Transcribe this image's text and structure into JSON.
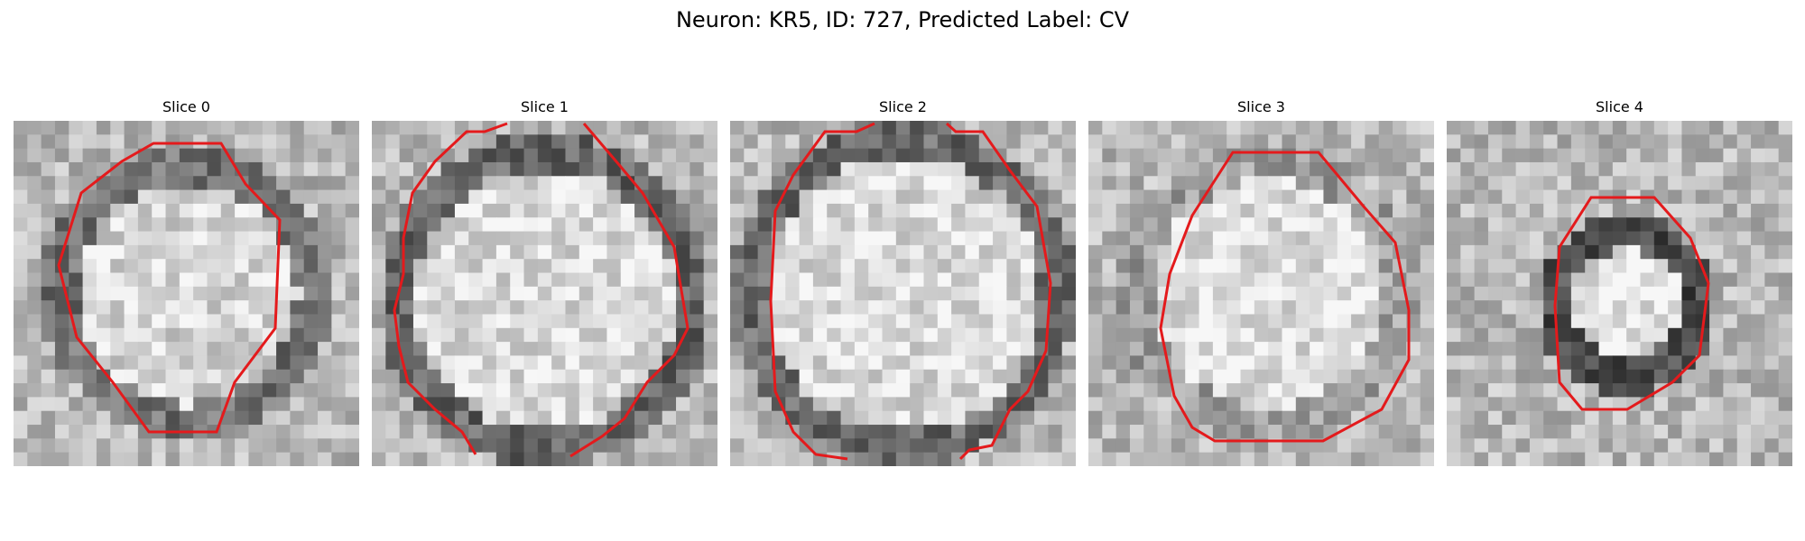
{
  "suptitle": "Neuron: KR5, ID: 727, Predicted Label: CV",
  "contour_color": "#e41a1c",
  "panels": [
    {
      "title": "Slice 0"
    },
    {
      "title": "Slice 1"
    },
    {
      "title": "Slice 2"
    },
    {
      "title": "Slice 3"
    },
    {
      "title": "Slice 4"
    }
  ]
}
